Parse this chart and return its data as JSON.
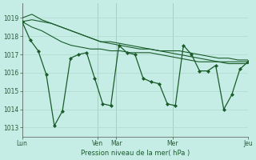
{
  "background_color": "#c5ede6",
  "grid_color": "#b0d8cc",
  "line_color": "#1a5c2a",
  "marker_color": "#1a5c2a",
  "xlabel": "Pression niveau de la mer( hPa )",
  "ylim": [
    1012.5,
    1019.8
  ],
  "yticks": [
    1013,
    1014,
    1015,
    1016,
    1017,
    1018,
    1019
  ],
  "xtick_labels": [
    "Lun",
    "Ven",
    "Mar",
    "Mer",
    "Jeu"
  ],
  "xtick_positions": [
    0,
    8,
    10,
    16,
    24
  ],
  "xlim": [
    0,
    24
  ],
  "series_main": [
    1018.8,
    1017.8,
    1017.2,
    1015.9,
    1013.1,
    1013.9,
    1016.8,
    1017.0,
    1017.1,
    1015.7,
    1014.3,
    1014.2,
    1017.5,
    1017.1,
    1017.0,
    1015.7,
    1015.5,
    1015.4,
    1014.3,
    1014.2,
    1017.5,
    1017.0,
    1016.1,
    1016.1,
    1016.4,
    1014.0,
    1014.8,
    1016.2,
    1016.6
  ],
  "series_trend1": [
    1019.0,
    1019.2,
    1018.9,
    1018.7,
    1018.5,
    1018.3,
    1018.1,
    1017.9,
    1017.7,
    1017.7,
    1017.6,
    1017.5,
    1017.4,
    1017.3,
    1017.2,
    1017.1,
    1017.0,
    1016.9,
    1016.8,
    1016.7,
    1016.6,
    1016.5,
    1016.5,
    1016.5
  ],
  "series_trend2": [
    1018.8,
    1018.9,
    1018.8,
    1018.7,
    1018.5,
    1018.3,
    1018.1,
    1017.9,
    1017.7,
    1017.6,
    1017.5,
    1017.4,
    1017.3,
    1017.3,
    1017.2,
    1017.2,
    1017.2,
    1017.1,
    1017.0,
    1016.9,
    1016.8,
    1016.8,
    1016.7,
    1016.7
  ],
  "series_trend3": [
    1018.8,
    1018.5,
    1018.3,
    1018.0,
    1017.7,
    1017.5,
    1017.4,
    1017.3,
    1017.3,
    1017.2,
    1017.2,
    1017.1,
    1017.1,
    1017.1,
    1017.0,
    1016.9,
    1016.8,
    1016.7,
    1016.6,
    1016.6,
    1016.6,
    1016.6,
    1016.6,
    1016.6
  ]
}
